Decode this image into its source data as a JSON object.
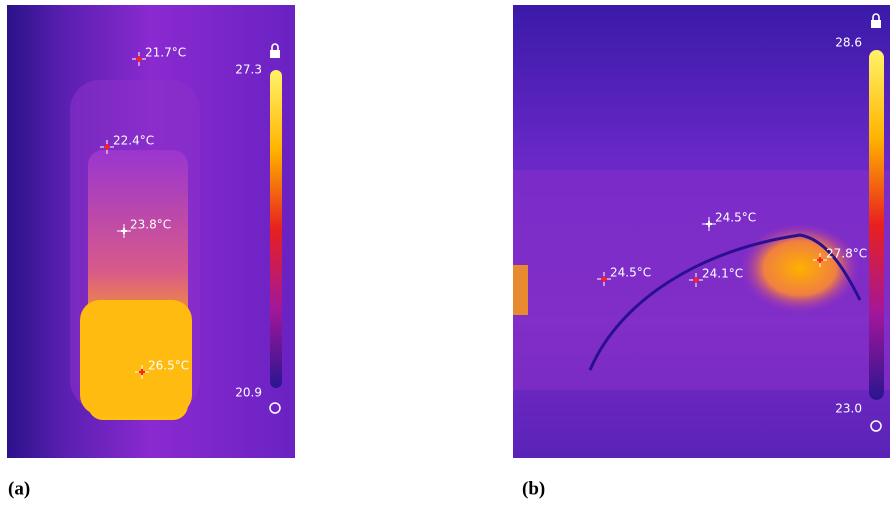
{
  "panels": [
    {
      "caption": "(a)",
      "scale_max": "27.3",
      "scale_min": "20.9",
      "spots": [
        "21.7°C",
        "22.4°C",
        "23.8°C",
        "26.5°C"
      ]
    },
    {
      "caption": "(b)",
      "scale_max": "28.6",
      "scale_min": "23.0",
      "spots": [
        "24.5°C",
        "24.5°C",
        "24.1°C",
        "27.8°C"
      ]
    }
  ]
}
